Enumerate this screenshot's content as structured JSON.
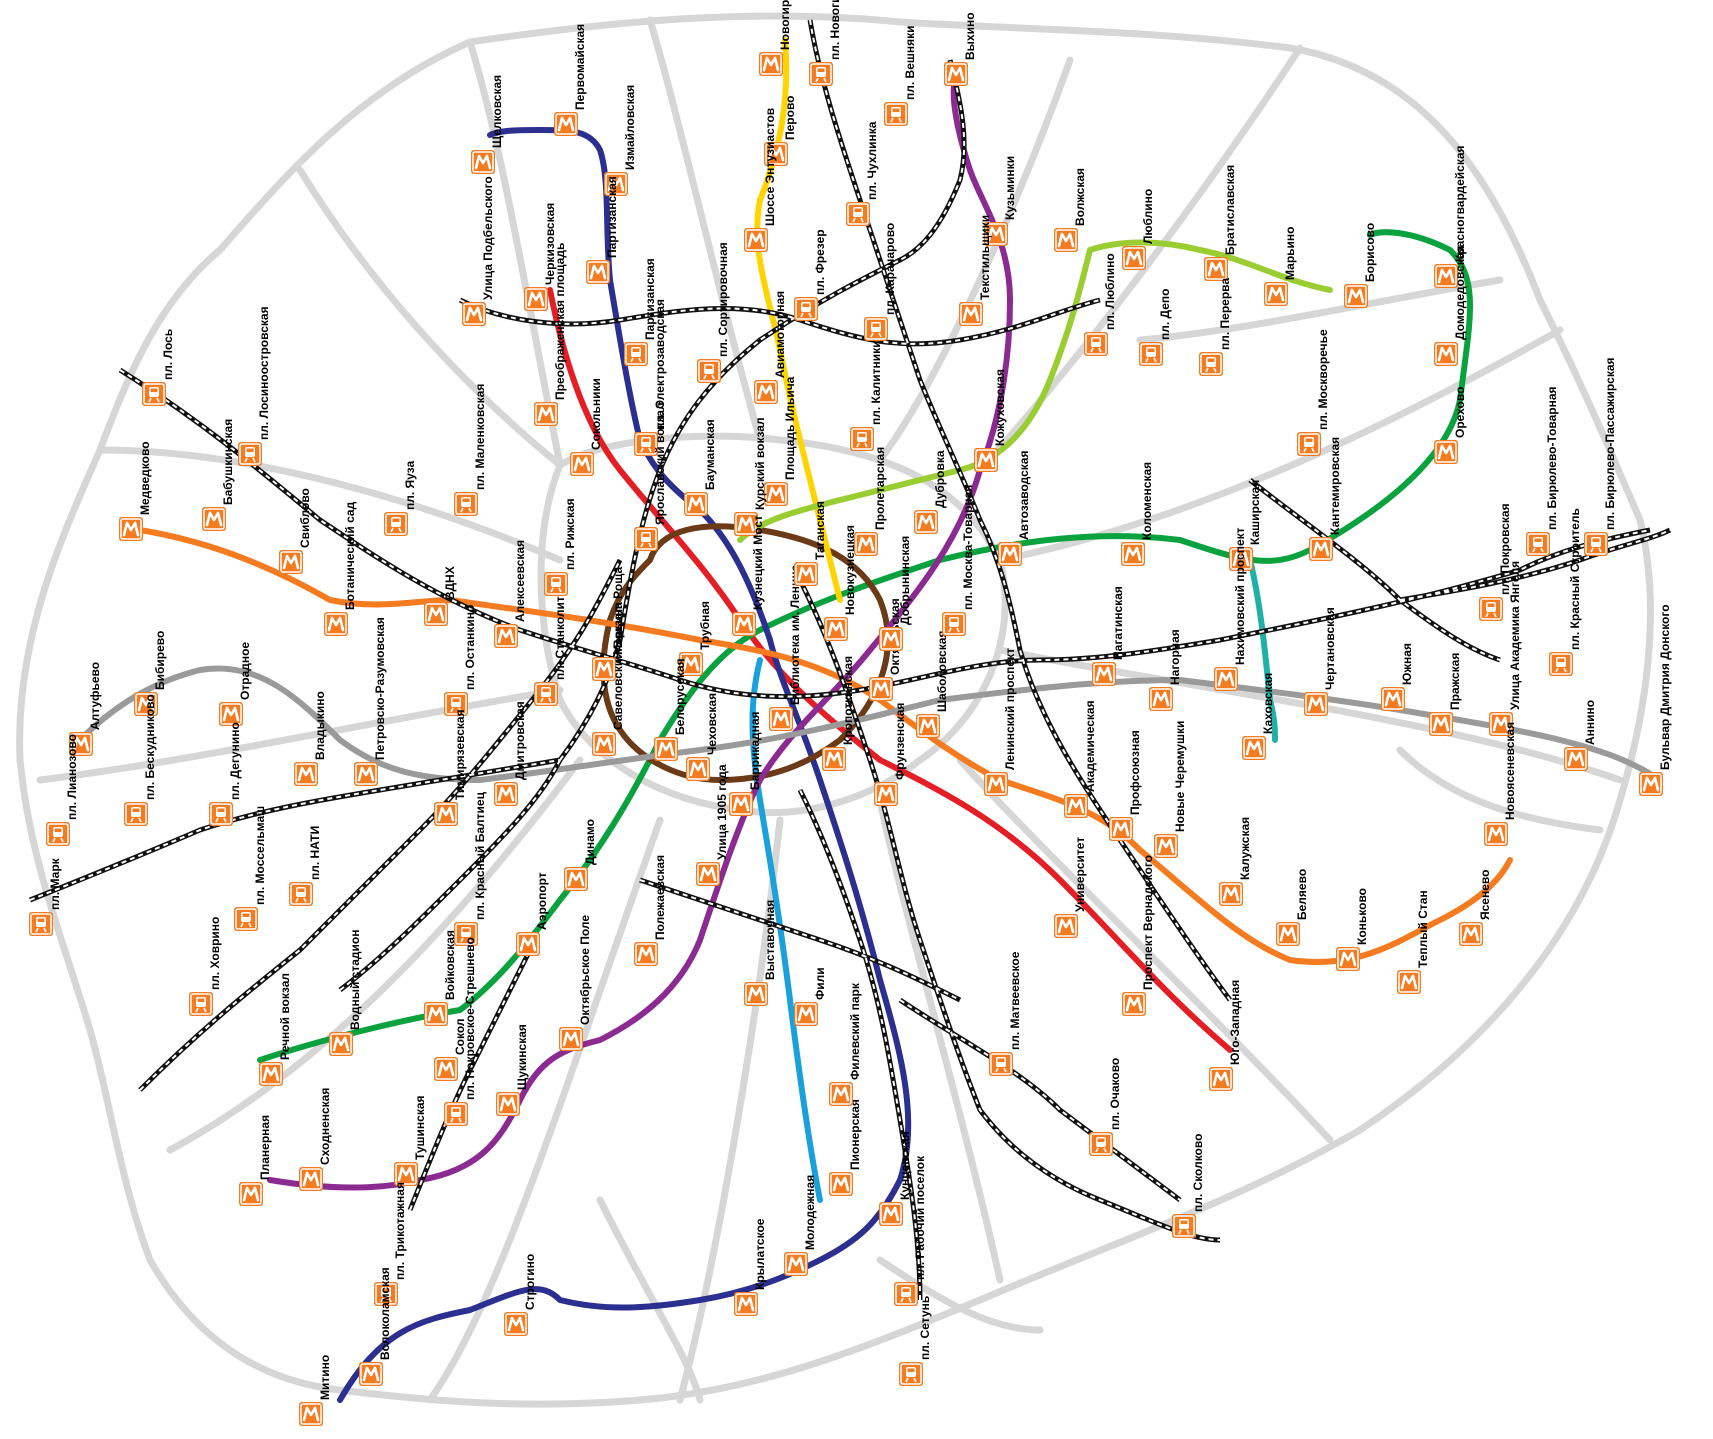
{
  "colors": {
    "road": "#d6d6d6",
    "rail_dark": "#111111",
    "icon_orange": "#f47b20",
    "metro": {
      "line1": "#e31e24",
      "line2": "#0aa23e",
      "line3": "#2b2f8f",
      "line4": "#1aa1dc",
      "line5": "#6b3a16",
      "line6": "#f47b20",
      "line7": "#8b2b91",
      "line8": "#ffd400",
      "line9": "#9a9a9a",
      "line10": "#9acd32",
      "line11": "#1fb1a7"
    }
  },
  "icons": {
    "metro": "metro-m-icon",
    "train": "train-icon"
  },
  "stations": [
    {
      "id": "s01",
      "label": "Щелковская",
      "icon": "metro"
    },
    {
      "id": "s02",
      "label": "Первомайская",
      "icon": "metro"
    },
    {
      "id": "s03",
      "label": "Измайловская",
      "icon": "metro"
    },
    {
      "id": "s04",
      "label": "Партизанская",
      "icon": "metro"
    },
    {
      "id": "s05",
      "label": "Новогиреево",
      "icon": "metro"
    },
    {
      "id": "s06",
      "label": "пл. Новогиреево",
      "icon": "train"
    },
    {
      "id": "s07",
      "label": "Перово",
      "icon": "metro"
    },
    {
      "id": "s08",
      "label": "Шоссе Энтузиастов",
      "icon": "metro"
    },
    {
      "id": "s09",
      "label": "Выхино",
      "icon": "metro"
    },
    {
      "id": "s10",
      "label": "пл. Вешняки",
      "icon": "train"
    },
    {
      "id": "s11",
      "label": "Кузьминки",
      "icon": "metro"
    },
    {
      "id": "s12",
      "label": "пл. Чухлинка",
      "icon": "train"
    },
    {
      "id": "s13",
      "label": "Волжская",
      "icon": "metro"
    },
    {
      "id": "s14",
      "label": "Люблино",
      "icon": "metro"
    },
    {
      "id": "s15",
      "label": "Братиславская",
      "icon": "metro"
    },
    {
      "id": "s16",
      "label": "Марьино",
      "icon": "metro"
    },
    {
      "id": "s17",
      "label": "Борисово",
      "icon": "metro"
    },
    {
      "id": "s18",
      "label": "Красногвардейская",
      "icon": "metro"
    },
    {
      "id": "s19",
      "label": "Домодедовская",
      "icon": "metro"
    },
    {
      "id": "s20",
      "label": "Орехово",
      "icon": "metro"
    },
    {
      "id": "s21",
      "label": "пл. Люблино",
      "icon": "train"
    },
    {
      "id": "s22",
      "label": "пл. Депо",
      "icon": "train"
    },
    {
      "id": "s23",
      "label": "пл. Перерва",
      "icon": "train"
    },
    {
      "id": "s24",
      "label": "Текстильщики",
      "icon": "metro"
    },
    {
      "id": "s25",
      "label": "Кожуховская",
      "icon": "metro"
    },
    {
      "id": "s26",
      "label": "пл. Москворечье",
      "icon": "train"
    },
    {
      "id": "s27",
      "label": "Кантемировская",
      "icon": "metro"
    },
    {
      "id": "s28",
      "label": "Каширская",
      "icon": "metro"
    },
    {
      "id": "s29",
      "label": "Коломенская",
      "icon": "metro"
    },
    {
      "id": "s30",
      "label": "Автозаводская",
      "icon": "metro"
    },
    {
      "id": "s31",
      "label": "пл. Бирюлево-Товарная",
      "icon": "train"
    },
    {
      "id": "s32",
      "label": "пл. Бирюлево-Пассажирская",
      "icon": "train"
    },
    {
      "id": "s33",
      "label": "пл. Покровская",
      "icon": "train"
    },
    {
      "id": "s34",
      "label": "пл. Красный Строитель",
      "icon": "train"
    },
    {
      "id": "s35",
      "label": "Улица Академика Янгеля",
      "icon": "metro"
    },
    {
      "id": "s36",
      "label": "Аннино",
      "icon": "metro"
    },
    {
      "id": "s37",
      "label": "Бульвар Дмитрия Донского",
      "icon": "metro"
    },
    {
      "id": "s38",
      "label": "Пражская",
      "icon": "metro"
    },
    {
      "id": "s39",
      "label": "Южная",
      "icon": "metro"
    },
    {
      "id": "s40",
      "label": "Чертановская",
      "icon": "metro"
    },
    {
      "id": "s41",
      "label": "Нахимовский проспект",
      "icon": "metro"
    },
    {
      "id": "s42",
      "label": "Каховская",
      "icon": "metro"
    },
    {
      "id": "s43",
      "label": "Нагорная",
      "icon": "metro"
    },
    {
      "id": "s44",
      "label": "Нагатинская",
      "icon": "metro"
    },
    {
      "id": "s45",
      "label": "Новоясеневская",
      "icon": "metro"
    },
    {
      "id": "s46",
      "label": "Ясенево",
      "icon": "metro"
    },
    {
      "id": "s47",
      "label": "Теплый Стан",
      "icon": "metro"
    },
    {
      "id": "s48",
      "label": "Коньково",
      "icon": "metro"
    },
    {
      "id": "s49",
      "label": "Беляево",
      "icon": "metro"
    },
    {
      "id": "s50",
      "label": "Калужская",
      "icon": "metro"
    },
    {
      "id": "s51",
      "label": "Новые Черемушки",
      "icon": "metro"
    },
    {
      "id": "s52",
      "label": "Профсоюзная",
      "icon": "metro"
    },
    {
      "id": "s53",
      "label": "Академическая",
      "icon": "metro"
    },
    {
      "id": "s54",
      "label": "Ленинский проспект",
      "icon": "metro"
    },
    {
      "id": "s55",
      "label": "Шаболовская",
      "icon": "metro"
    },
    {
      "id": "s56",
      "label": "Университет",
      "icon": "metro"
    },
    {
      "id": "s57",
      "label": "Проспект Вернадского",
      "icon": "metro"
    },
    {
      "id": "s58",
      "label": "Юго-Западная",
      "icon": "metro"
    },
    {
      "id": "s59",
      "label": "пл. Матвеевское",
      "icon": "train"
    },
    {
      "id": "s60",
      "label": "пл. Очаково",
      "icon": "train"
    },
    {
      "id": "s61",
      "label": "пл. Сколково",
      "icon": "train"
    },
    {
      "id": "s62",
      "label": "Фрунзенская",
      "icon": "metro"
    },
    {
      "id": "s63",
      "label": "Октябрьская",
      "icon": "metro"
    },
    {
      "id": "s64",
      "label": "Добрынинская",
      "icon": "metro"
    },
    {
      "id": "s65",
      "label": "пл. Москва-Товарная",
      "icon": "train"
    },
    {
      "id": "s66",
      "label": "Кропоткинская",
      "icon": "metro"
    },
    {
      "id": "s67",
      "label": "Библиотека им. Ленина",
      "icon": "metro"
    },
    {
      "id": "s68",
      "label": "Новокузнецкая",
      "icon": "metro"
    },
    {
      "id": "s69",
      "label": "Таганская",
      "icon": "metro"
    },
    {
      "id": "s70",
      "label": "Пролетарская",
      "icon": "metro"
    },
    {
      "id": "s71",
      "label": "Дубровка",
      "icon": "metro"
    },
    {
      "id": "s72",
      "label": "пл. Калитники",
      "icon": "train"
    },
    {
      "id": "s73",
      "label": "Площадь Ильича",
      "icon": "metro"
    },
    {
      "id": "s74",
      "label": "Авиамоторная",
      "icon": "metro"
    },
    {
      "id": "s75",
      "label": "пл. Фрезер",
      "icon": "train"
    },
    {
      "id": "s76",
      "label": "пл. Карачарово",
      "icon": "train"
    },
    {
      "id": "s77",
      "label": "пл. Сортировочная",
      "icon": "train"
    },
    {
      "id": "s78",
      "label": "Курский вокзал",
      "icon": "metro"
    },
    {
      "id": "s79",
      "label": "Бауманская",
      "icon": "metro"
    },
    {
      "id": "s80",
      "label": "пл. Электрозаводская",
      "icon": "train"
    },
    {
      "id": "s81",
      "label": "Партизанская",
      "icon": "train"
    },
    {
      "id": "s82",
      "label": "Сокольники",
      "icon": "metro"
    },
    {
      "id": "s83",
      "label": "Преображенская площадь",
      "icon": "metro"
    },
    {
      "id": "s84",
      "label": "Черкизовская",
      "icon": "metro"
    },
    {
      "id": "s85",
      "label": "Улица Подбельского",
      "icon": "metro"
    },
    {
      "id": "s86",
      "label": "Ярославский вокзал",
      "icon": "train"
    },
    {
      "id": "s87",
      "label": "пл. Рижская",
      "icon": "train"
    },
    {
      "id": "s88",
      "label": "Марьина Роща",
      "icon": "metro"
    },
    {
      "id": "s89",
      "label": "Трубная",
      "icon": "metro"
    },
    {
      "id": "s90",
      "label": "Кузнецкий Мост",
      "icon": "metro"
    },
    {
      "id": "s91",
      "label": "Чеховская",
      "icon": "metro"
    },
    {
      "id": "s92",
      "label": "Белорусская",
      "icon": "metro"
    },
    {
      "id": "s93",
      "label": "Савеловский Вокзал",
      "icon": "metro"
    },
    {
      "id": "s94",
      "label": "пл. Станколит",
      "icon": "train"
    },
    {
      "id": "s95",
      "label": "Алексеевская",
      "icon": "metro"
    },
    {
      "id": "s96",
      "label": "ВДНХ",
      "icon": "metro"
    },
    {
      "id": "s97",
      "label": "пл. Маленковская",
      "icon": "train"
    },
    {
      "id": "s98",
      "label": "Ботанический сад",
      "icon": "metro"
    },
    {
      "id": "s99",
      "label": "Свиблово",
      "icon": "metro"
    },
    {
      "id": "s100",
      "label": "Бабушкинская",
      "icon": "metro"
    },
    {
      "id": "s101",
      "label": "Медведково",
      "icon": "metro"
    },
    {
      "id": "s102",
      "label": "пл. Лосиноостровская",
      "icon": "train"
    },
    {
      "id": "s103",
      "label": "пл. Лось",
      "icon": "train"
    },
    {
      "id": "s104",
      "label": "пл. Яуза",
      "icon": "train"
    },
    {
      "id": "s105",
      "label": "Алтуфьево",
      "icon": "metro"
    },
    {
      "id": "s106",
      "label": "Бибирево",
      "icon": "metro"
    },
    {
      "id": "s107",
      "label": "Отрадное",
      "icon": "metro"
    },
    {
      "id": "s108",
      "label": "Владыкино",
      "icon": "metro"
    },
    {
      "id": "s109",
      "label": "пл. Останкино",
      "icon": "train"
    },
    {
      "id": "s110",
      "label": "Петровско-Разумовская",
      "icon": "metro"
    },
    {
      "id": "s111",
      "label": "Тимирязевская",
      "icon": "metro"
    },
    {
      "id": "s112",
      "label": "Дмитровская",
      "icon": "metro"
    },
    {
      "id": "s113",
      "label": "пл. Лианозово",
      "icon": "train"
    },
    {
      "id": "s114",
      "label": "пл. Бескудниково",
      "icon": "train"
    },
    {
      "id": "s115",
      "label": "пл. Дегунино",
      "icon": "train"
    },
    {
      "id": "s116",
      "label": "пл. Марк",
      "icon": "train"
    },
    {
      "id": "s117",
      "label": "пл. Моссельмаш",
      "icon": "train"
    },
    {
      "id": "s118",
      "label": "пл. НАТИ",
      "icon": "train"
    },
    {
      "id": "s119",
      "label": "пл. Ховрино",
      "icon": "train"
    },
    {
      "id": "s120",
      "label": "пл. Красный Балтиец",
      "icon": "train"
    },
    {
      "id": "s121",
      "label": "Водный стадион",
      "icon": "metro"
    },
    {
      "id": "s122",
      "label": "Речной вокзал",
      "icon": "metro"
    },
    {
      "id": "s123",
      "label": "Войковская",
      "icon": "metro"
    },
    {
      "id": "s124",
      "label": "пл. Покровское-Стрешнево",
      "icon": "train"
    },
    {
      "id": "s125",
      "label": "Сокол",
      "icon": "metro"
    },
    {
      "id": "s126",
      "label": "Аэропорт",
      "icon": "metro"
    },
    {
      "id": "s127",
      "label": "Динамо",
      "icon": "metro"
    },
    {
      "id": "s128",
      "label": "Полежаевская",
      "icon": "metro"
    },
    {
      "id": "s129",
      "label": "Октябрьское Поле",
      "icon": "metro"
    },
    {
      "id": "s130",
      "label": "Щукинская",
      "icon": "metro"
    },
    {
      "id": "s131",
      "label": "Тушинская",
      "icon": "metro"
    },
    {
      "id": "s132",
      "label": "Сходненская",
      "icon": "metro"
    },
    {
      "id": "s133",
      "label": "Планерная",
      "icon": "metro"
    },
    {
      "id": "s134",
      "label": "пл. Трикотажная",
      "icon": "train"
    },
    {
      "id": "s135",
      "label": "Волоколамская",
      "icon": "metro"
    },
    {
      "id": "s136",
      "label": "Митино",
      "icon": "metro"
    },
    {
      "id": "s137",
      "label": "Строгино",
      "icon": "metro"
    },
    {
      "id": "s138",
      "label": "Крылатское",
      "icon": "metro"
    },
    {
      "id": "s139",
      "label": "Молодежная",
      "icon": "metro"
    },
    {
      "id": "s140",
      "label": "Кунцевская",
      "icon": "metro"
    },
    {
      "id": "s141",
      "label": "пл. Рабочий поселок",
      "icon": "train"
    },
    {
      "id": "s142",
      "label": "пл. Сетунь",
      "icon": "train"
    },
    {
      "id": "s143",
      "label": "Пионерская",
      "icon": "metro"
    },
    {
      "id": "s144",
      "label": "Филевский парк",
      "icon": "metro"
    },
    {
      "id": "s145",
      "label": "Фили",
      "icon": "metro"
    },
    {
      "id": "s146",
      "label": "Выставочная",
      "icon": "metro"
    },
    {
      "id": "s147",
      "label": "Улица 1905 года",
      "icon": "metro"
    },
    {
      "id": "s148",
      "label": "Баррикадная",
      "icon": "metro"
    }
  ]
}
